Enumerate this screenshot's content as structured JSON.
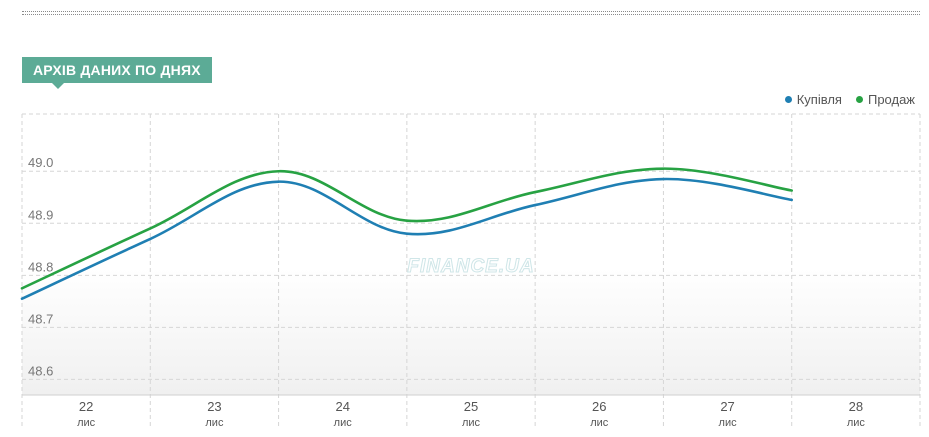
{
  "section": {
    "title": "АРХІВ ДАНИХ ПО ДНЯХ"
  },
  "watermark": "FINANCE.UA",
  "colors": {
    "buy": "#1f7fb3",
    "sell": "#27a243",
    "header": "#5cab96"
  },
  "chart_data": {
    "type": "line",
    "categories": [
      "22",
      "23",
      "24",
      "25",
      "26",
      "27",
      "28"
    ],
    "category_sublabel": "лис",
    "y_ticks": [
      "48.6",
      "48.7",
      "48.8",
      "48.9",
      "49.0"
    ],
    "ylim": [
      48.57,
      49.11
    ],
    "grid": true,
    "legend_position": "top-right",
    "series": [
      {
        "name": "Купівля",
        "color": "#1f7fb3",
        "x": [
          0,
          1,
          2,
          3,
          4,
          5,
          6
        ],
        "values": [
          48.755,
          48.87,
          48.98,
          48.88,
          48.935,
          48.985,
          48.945
        ]
      },
      {
        "name": "Продаж",
        "color": "#27a243",
        "x": [
          0,
          1,
          2,
          3,
          4,
          5,
          6
        ],
        "values": [
          48.775,
          48.89,
          49.0,
          48.905,
          48.96,
          49.005,
          48.963
        ]
      }
    ]
  }
}
